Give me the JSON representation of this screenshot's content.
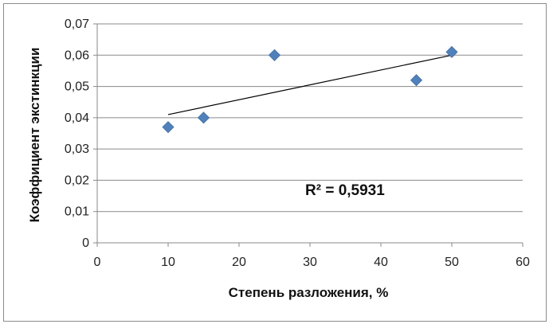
{
  "chart_data": {
    "type": "scatter",
    "title": "",
    "xlabel": "Степень разложения,  %",
    "ylabel": "Коэффициент экстинкции",
    "xlim": [
      0,
      60
    ],
    "ylim": [
      0,
      0.07
    ],
    "x_ticks": [
      0,
      10,
      20,
      30,
      40,
      50,
      60
    ],
    "y_ticks": [
      0,
      0.01,
      0.02,
      0.03,
      0.04,
      0.05,
      0.06,
      0.07
    ],
    "x_tick_labels": [
      "0",
      "10",
      "20",
      "30",
      "40",
      "50",
      "60"
    ],
    "y_tick_labels": [
      "0",
      "0,01",
      "0,02",
      "0,03",
      "0,04",
      "0,05",
      "0,06",
      "0,07"
    ],
    "grid": "horizontal",
    "marker": "diamond",
    "marker_color": "#4f81bd",
    "series": [
      {
        "x": [
          10,
          15,
          25,
          45,
          50
        ],
        "y": [
          0.037,
          0.04,
          0.06,
          0.052,
          0.061
        ]
      }
    ],
    "trendline": {
      "type": "linear",
      "x_range": [
        10,
        50
      ],
      "y_range": [
        0.041,
        0.06
      ],
      "color": "#000000",
      "r2_label": "R² = 0,5931"
    }
  }
}
